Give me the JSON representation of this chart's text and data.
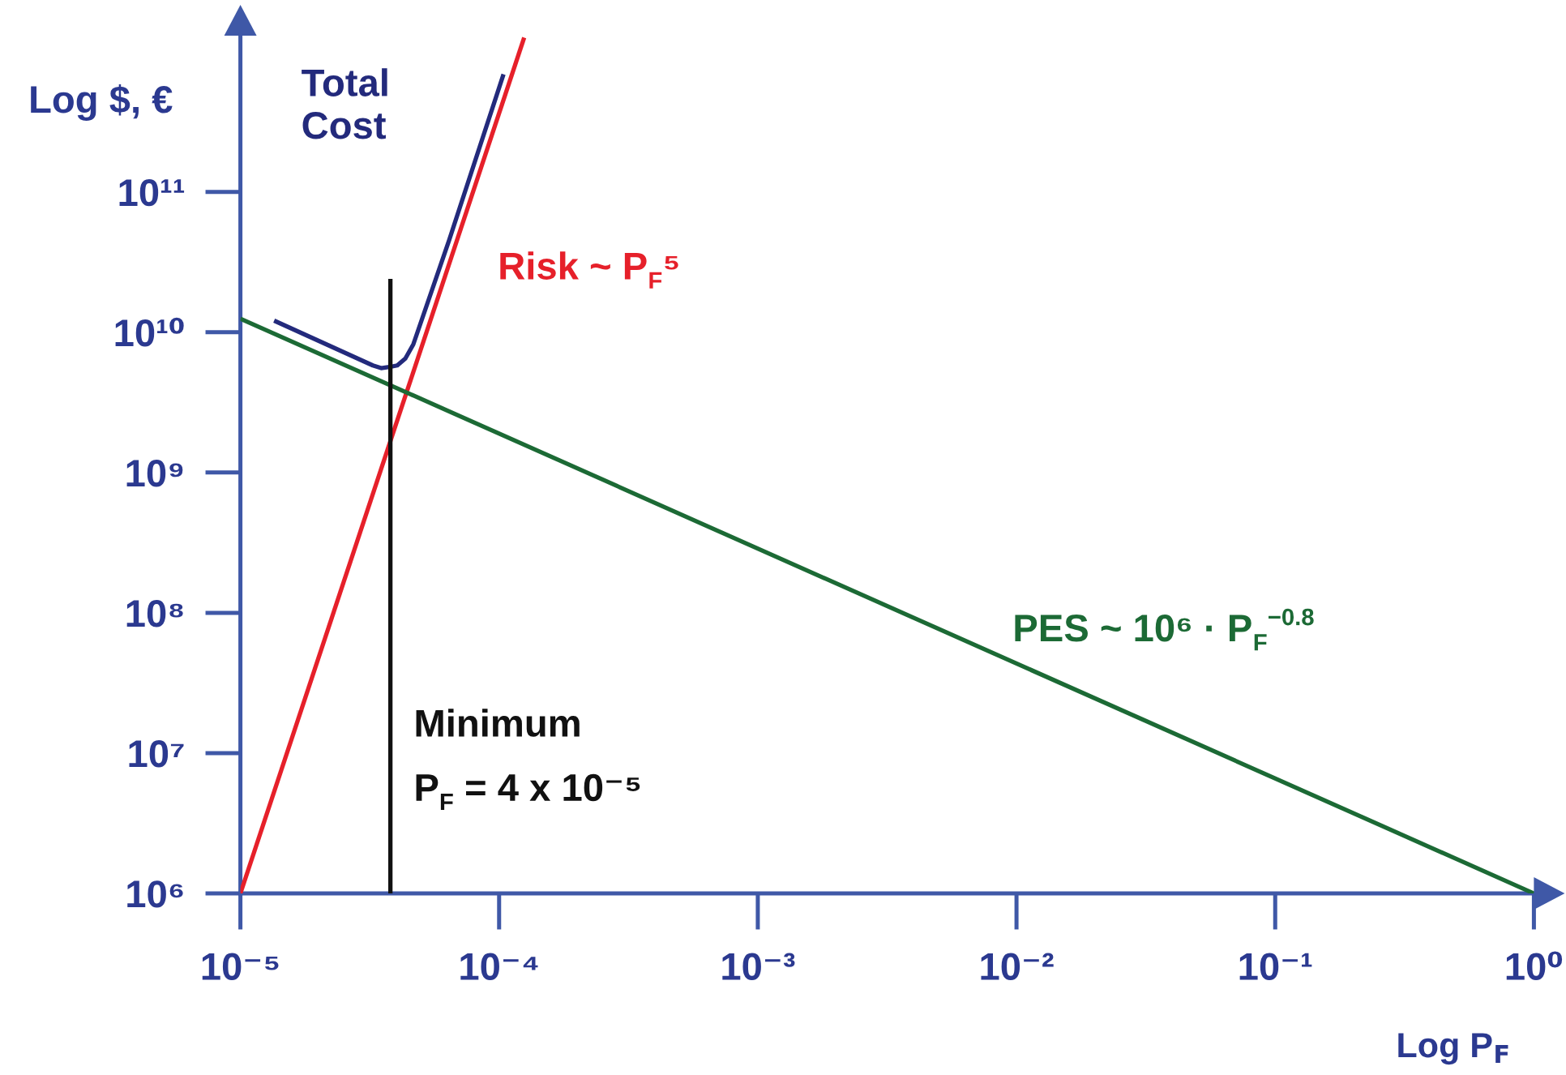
{
  "chart_data": {
    "type": "line",
    "log": "xy",
    "xlabel": "Log P$_{F}$",
    "ylabel": "Log $, €",
    "xlim": [
      1e-05,
      1
    ],
    "ylim": [
      1000000.0,
      1300000000000.0
    ],
    "xticks": [
      {
        "value": 1e-05,
        "label": "10⁻⁵"
      },
      {
        "value": 0.0001,
        "label": "10⁻⁴"
      },
      {
        "value": 0.001,
        "label": "10⁻³"
      },
      {
        "value": 0.01,
        "label": "10⁻²"
      },
      {
        "value": 0.1,
        "label": "10⁻¹"
      },
      {
        "value": 1,
        "label": "10⁰"
      }
    ],
    "yticks": [
      {
        "value": 1000000.0,
        "label": "10⁶"
      },
      {
        "value": 10000000.0,
        "label": "10⁷"
      },
      {
        "value": 100000000.0,
        "label": "10⁸"
      },
      {
        "value": 1000000000.0,
        "label": "10⁹"
      },
      {
        "value": 10000000000.0,
        "label": "10¹⁰"
      },
      {
        "value": 100000000000.0,
        "label": "10¹¹"
      }
    ],
    "grid": false,
    "legend": false,
    "line_style": "solid",
    "series": [
      {
        "name": "Total\nCost",
        "color": "#232a7c",
        "x": [
          1.35e-05,
          3.25e-05,
          3.5e-05,
          3.76e-05,
          4.04e-05,
          4.34e-05,
          4.66e-05,
          6.4e-05,
          0.000104
        ],
        "values": [
          12100000000.0,
          5800000000.0,
          5550000000.0,
          5650000000.0,
          5800000000.0,
          6500000000.0,
          8200000000.0,
          45000000000.0,
          690000000000.0
        ]
      },
      {
        "name": "Risk ~ P$_{F}$⁵",
        "color": "#e6202a",
        "x": [
          1e-05,
          0.000125
        ],
        "values": [
          1000000.0,
          1260000000000.0
        ]
      },
      {
        "name": "PES ~ 10⁶ · P$_{F}$$^{−0.8}$",
        "color": "#1c6a35",
        "x": [
          1e-05,
          1
        ],
        "values": [
          12500000000.0,
          1000000.0
        ]
      },
      {
        "color": "#111111",
        "x": [
          3.8e-05,
          3.8e-05
        ],
        "values": [
          1000000.0,
          24000000000.0
        ]
      }
    ],
    "annotations": [
      "Minimum",
      "P$_{F}$ = 4 x 10⁻⁵"
    ]
  }
}
